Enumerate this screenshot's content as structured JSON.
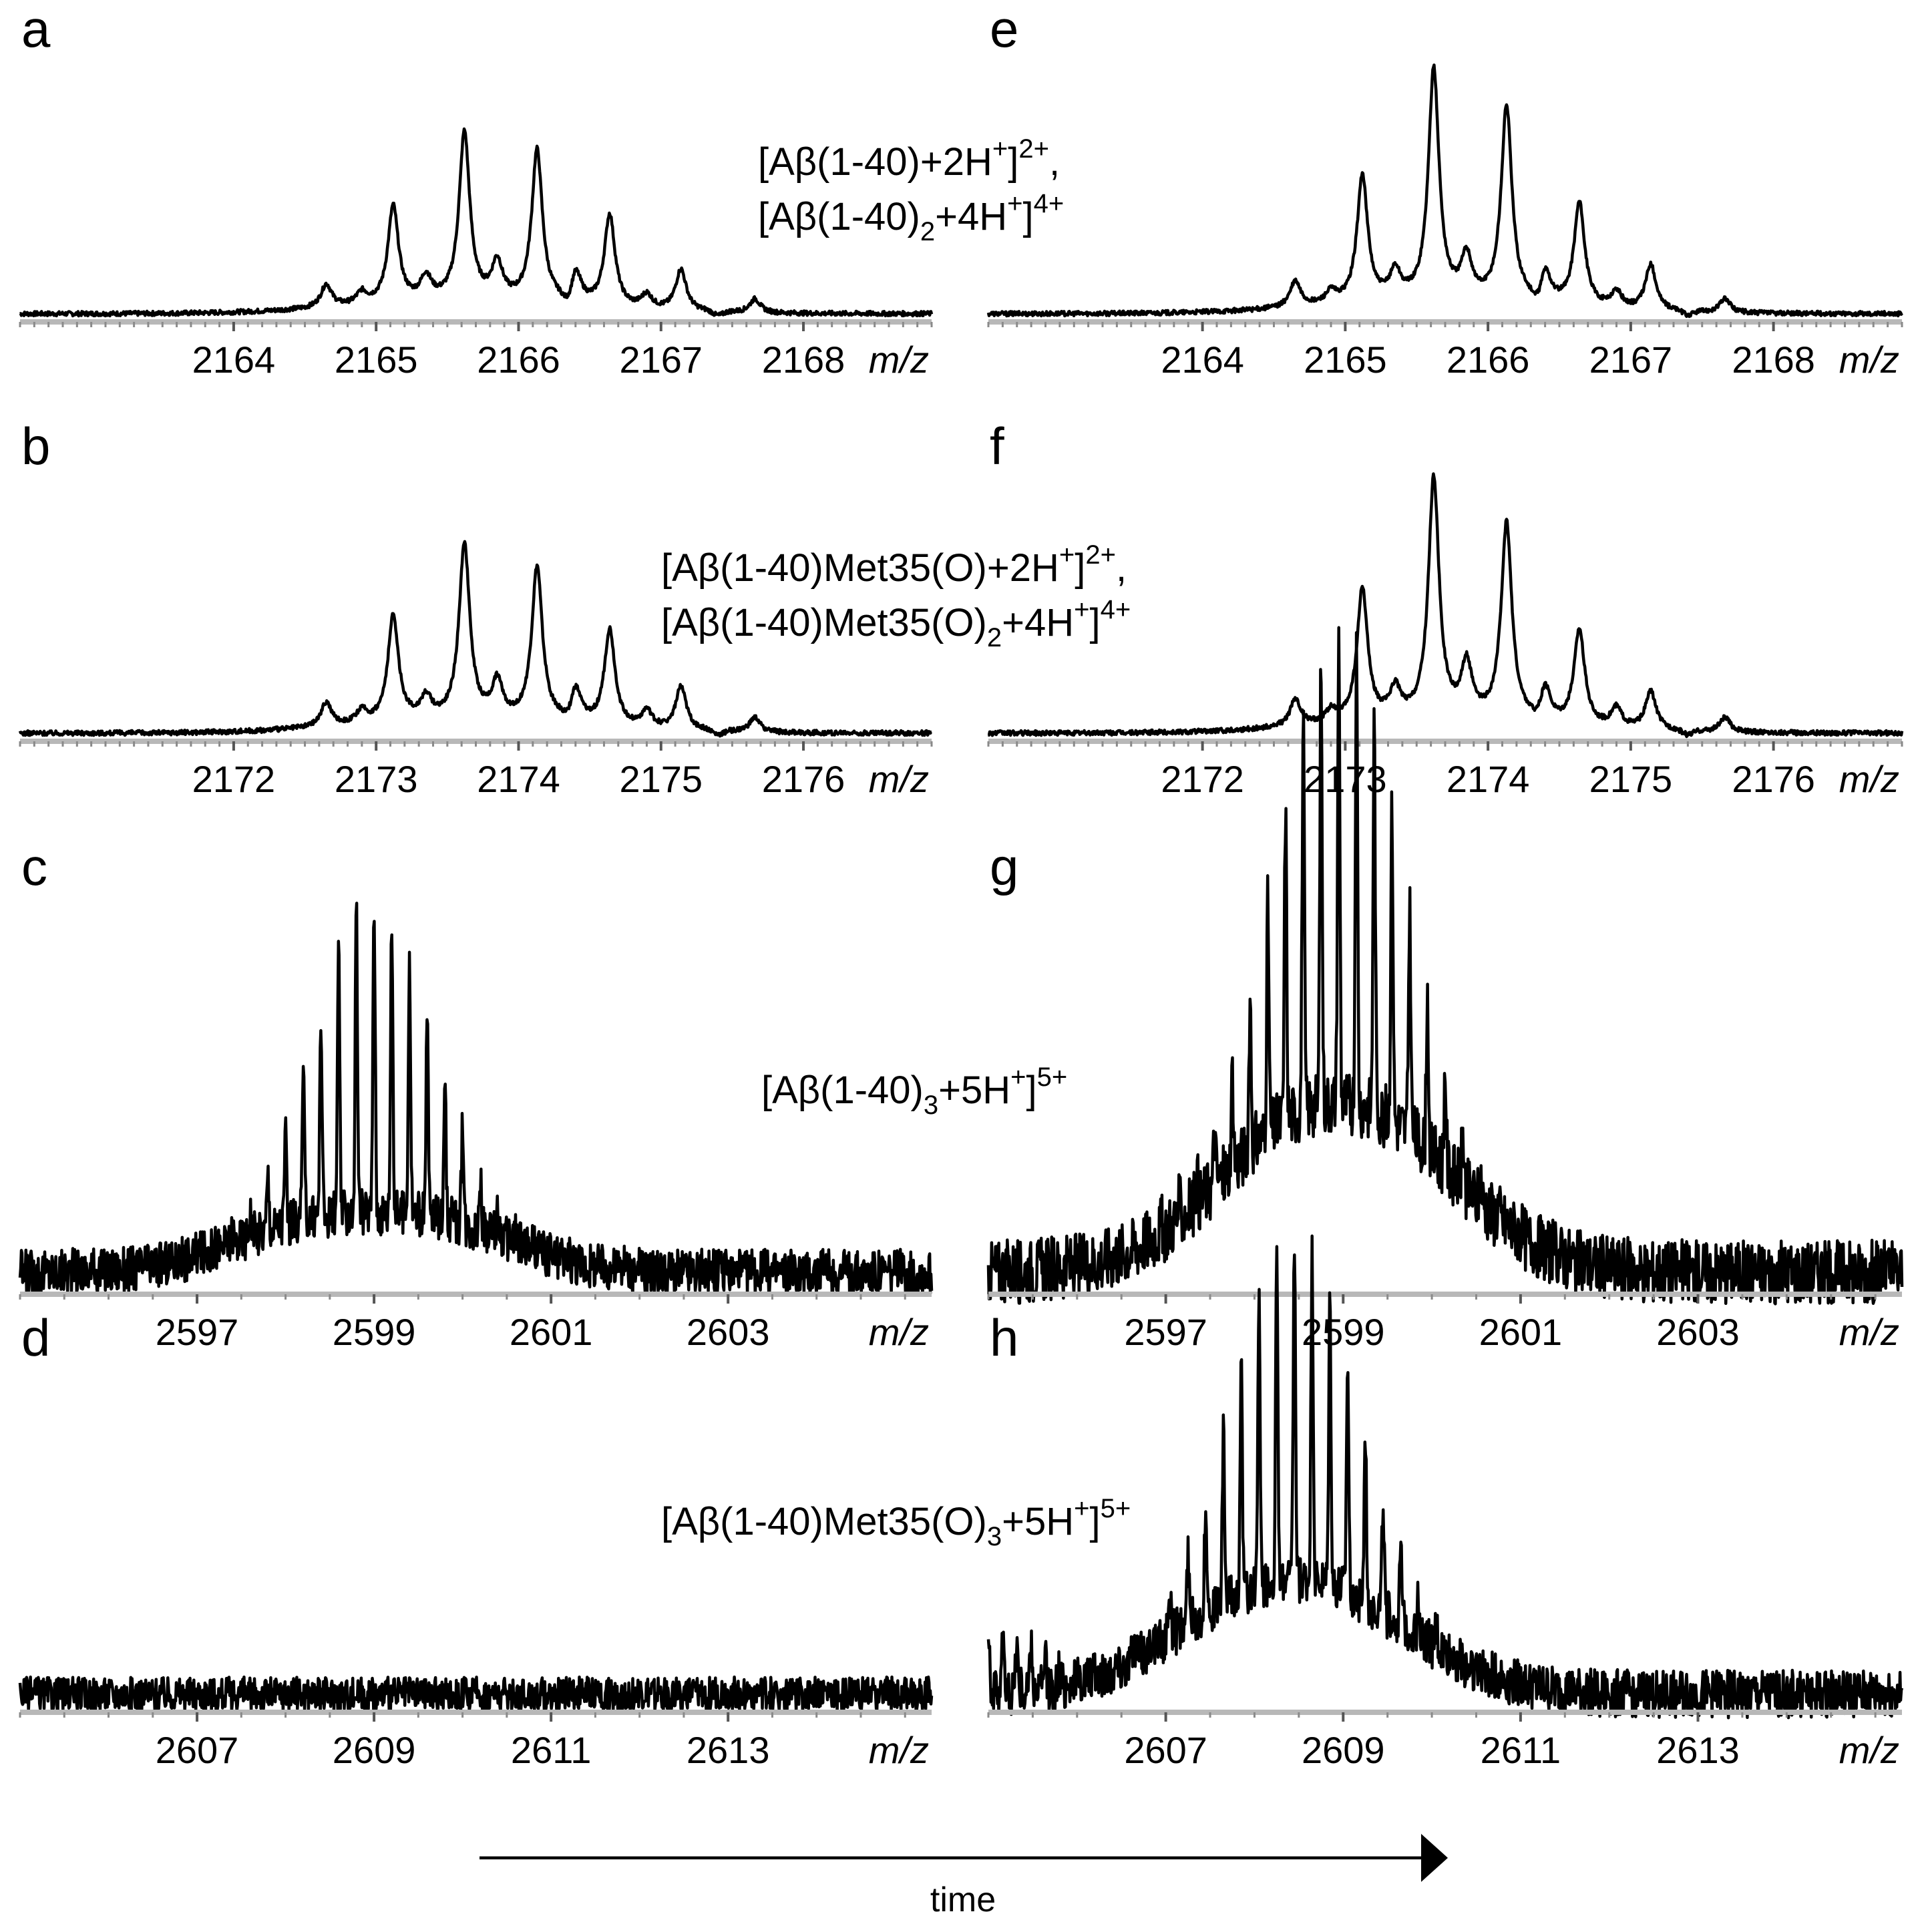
{
  "chart_data": [
    {
      "id": "a",
      "type": "line",
      "label": "a",
      "xlabel": "m/z",
      "xlim": [
        2162.5,
        2168.9
      ],
      "ticks": [
        2164,
        2165,
        2166,
        2167,
        2168
      ],
      "tick_labels": [
        "2164",
        "2165",
        "2166",
        "2167",
        "2168"
      ],
      "peaks": [
        {
          "x": 2164.65,
          "y": 0.1
        },
        {
          "x": 2164.9,
          "y": 0.05
        },
        {
          "x": 2165.12,
          "y": 0.42
        },
        {
          "x": 2165.35,
          "y": 0.1
        },
        {
          "x": 2165.62,
          "y": 0.73
        },
        {
          "x": 2165.85,
          "y": 0.16
        },
        {
          "x": 2166.13,
          "y": 0.66
        },
        {
          "x": 2166.4,
          "y": 0.14
        },
        {
          "x": 2166.64,
          "y": 0.4
        },
        {
          "x": 2166.9,
          "y": 0.06
        },
        {
          "x": 2167.14,
          "y": 0.18
        },
        {
          "x": 2167.66,
          "y": 0.06
        }
      ],
      "noise": 0.01,
      "trough": [
        [
          2166.35,
          -0.05
        ],
        [
          2167.4,
          -0.02
        ]
      ]
    },
    {
      "id": "e",
      "type": "line",
      "label": "e",
      "xlabel": "m/z",
      "xlim": [
        2162.5,
        2168.9
      ],
      "ticks": [
        2164,
        2165,
        2166,
        2167,
        2168
      ],
      "tick_labels": [
        "2164",
        "2165",
        "2166",
        "2167",
        "2168"
      ],
      "peaks": [
        {
          "x": 2164.65,
          "y": 0.11
        },
        {
          "x": 2164.9,
          "y": 0.05
        },
        {
          "x": 2165.12,
          "y": 0.55
        },
        {
          "x": 2165.35,
          "y": 0.12
        },
        {
          "x": 2165.62,
          "y": 1.0
        },
        {
          "x": 2165.85,
          "y": 0.18
        },
        {
          "x": 2166.13,
          "y": 0.85
        },
        {
          "x": 2166.4,
          "y": 0.14
        },
        {
          "x": 2166.64,
          "y": 0.45
        },
        {
          "x": 2166.9,
          "y": 0.07
        },
        {
          "x": 2167.14,
          "y": 0.2
        },
        {
          "x": 2167.66,
          "y": 0.06
        }
      ],
      "noise": 0.01,
      "trough": [
        [
          2166.35,
          -0.05
        ],
        [
          2167.4,
          -0.02
        ]
      ]
    },
    {
      "id": "b",
      "type": "line",
      "label": "b",
      "xlabel": "m/z",
      "xlim": [
        2170.5,
        2176.9
      ],
      "ticks": [
        2172,
        2173,
        2174,
        2175,
        2176
      ],
      "tick_labels": [
        "2172",
        "2173",
        "2174",
        "2175",
        "2176"
      ],
      "peaks": [
        {
          "x": 2172.65,
          "y": 0.1
        },
        {
          "x": 2172.9,
          "y": 0.05
        },
        {
          "x": 2173.12,
          "y": 0.44
        },
        {
          "x": 2173.35,
          "y": 0.09
        },
        {
          "x": 2173.62,
          "y": 0.73
        },
        {
          "x": 2173.85,
          "y": 0.15
        },
        {
          "x": 2174.13,
          "y": 0.64
        },
        {
          "x": 2174.4,
          "y": 0.14
        },
        {
          "x": 2174.64,
          "y": 0.4
        },
        {
          "x": 2174.9,
          "y": 0.07
        },
        {
          "x": 2175.14,
          "y": 0.18
        },
        {
          "x": 2175.66,
          "y": 0.06
        }
      ],
      "noise": 0.01,
      "trough": [
        [
          2174.35,
          -0.03
        ],
        [
          2175.4,
          -0.02
        ]
      ]
    },
    {
      "id": "f",
      "type": "line",
      "label": "f",
      "xlabel": "m/z",
      "xlim": [
        2170.5,
        2176.9
      ],
      "ticks": [
        2172,
        2173,
        2174,
        2175,
        2176
      ],
      "tick_labels": [
        "2172",
        "2173",
        "2174",
        "2175",
        "2176"
      ],
      "peaks": [
        {
          "x": 2172.65,
          "y": 0.11
        },
        {
          "x": 2172.9,
          "y": 0.05
        },
        {
          "x": 2173.12,
          "y": 0.55
        },
        {
          "x": 2173.35,
          "y": 0.12
        },
        {
          "x": 2173.62,
          "y": 1.0
        },
        {
          "x": 2173.85,
          "y": 0.22
        },
        {
          "x": 2174.13,
          "y": 0.82
        },
        {
          "x": 2174.4,
          "y": 0.14
        },
        {
          "x": 2174.64,
          "y": 0.4
        },
        {
          "x": 2174.9,
          "y": 0.08
        },
        {
          "x": 2175.14,
          "y": 0.16
        },
        {
          "x": 2175.66,
          "y": 0.06
        }
      ],
      "noise": 0.01,
      "trough": [
        [
          2174.35,
          -0.03
        ],
        [
          2175.4,
          -0.02
        ]
      ]
    },
    {
      "id": "c",
      "type": "line",
      "label": "c",
      "xlabel": "m/z",
      "xlim": [
        2595.0,
        2605.3
      ],
      "ticks": [
        2597,
        2599,
        2601,
        2603
      ],
      "tick_labels": [
        "2597",
        "2599",
        "2601",
        "2603"
      ],
      "envelope": {
        "center": 2599.0,
        "width": 0.9,
        "height": 0.68,
        "spacing": 0.2,
        "broad_height": 0.18,
        "broad_width": 1.6
      },
      "noise": 0.05
    },
    {
      "id": "g",
      "type": "line",
      "label": "g",
      "xlabel": "m/z",
      "xlim": [
        2595.0,
        2605.3
      ],
      "ticks": [
        2597,
        2599,
        2601,
        2603
      ],
      "tick_labels": [
        "2597",
        "2599",
        "2601",
        "2603"
      ],
      "envelope": {
        "center": 2598.95,
        "width": 0.95,
        "height": 1.0,
        "spacing": 0.2,
        "broad_height": 0.42,
        "broad_width": 1.6
      },
      "noise": 0.07
    },
    {
      "id": "d",
      "type": "line",
      "label": "d",
      "xlabel": "m/z",
      "xlim": [
        2605.0,
        2615.3
      ],
      "ticks": [
        2607,
        2609,
        2611,
        2613
      ],
      "tick_labels": [
        "2607",
        "2609",
        "2611",
        "2613"
      ],
      "noise": 0.05
    },
    {
      "id": "h",
      "type": "line",
      "label": "h",
      "xlabel": "m/z",
      "xlim": [
        2605.0,
        2615.3
      ],
      "ticks": [
        2607,
        2609,
        2611,
        2613
      ],
      "tick_labels": [
        "2607",
        "2609",
        "2611",
        "2613"
      ],
      "envelope": {
        "center": 2608.45,
        "width": 0.95,
        "height": 1.0,
        "spacing": 0.2,
        "broad_height": 0.38,
        "broad_width": 1.6
      },
      "left_artifact": true,
      "noise": 0.07
    }
  ],
  "annotations": {
    "row1": {
      "pre": "[Aβ(1-40)+2H",
      "sup1": "+",
      "mid": "]",
      "sup2": "2+",
      "tail": ",",
      "line2_pre": "[Aβ(1-40)",
      "sub": "2",
      "line2_mid": "+4H",
      "sup3": "+",
      "line2_mid2": "]",
      "sup4": "4+"
    },
    "row2": {
      "pre": "[Aβ(1-40)Met35(O)+2H",
      "sup1": "+",
      "mid": "]",
      "sup2": "2+",
      "tail": ",",
      "line2_pre": "[Aβ(1-40)Met35(O)",
      "sub": "2",
      "line2_mid": "+4H",
      "sup3": "+",
      "line2_mid2": "]",
      "sup4": "4+"
    },
    "row3": {
      "pre": "[Aβ(1-40)",
      "sub": "3",
      "mid": "+5H",
      "sup1": "+",
      "mid2": "]",
      "sup2": "5+"
    },
    "row4": {
      "pre": "[Aβ(1-40)Met35(O)",
      "sub": "3",
      "mid": "+5H",
      "sup1": "+",
      "mid2": "]",
      "sup2": "5+"
    }
  },
  "unit_label": "m/z",
  "time_label": "time"
}
